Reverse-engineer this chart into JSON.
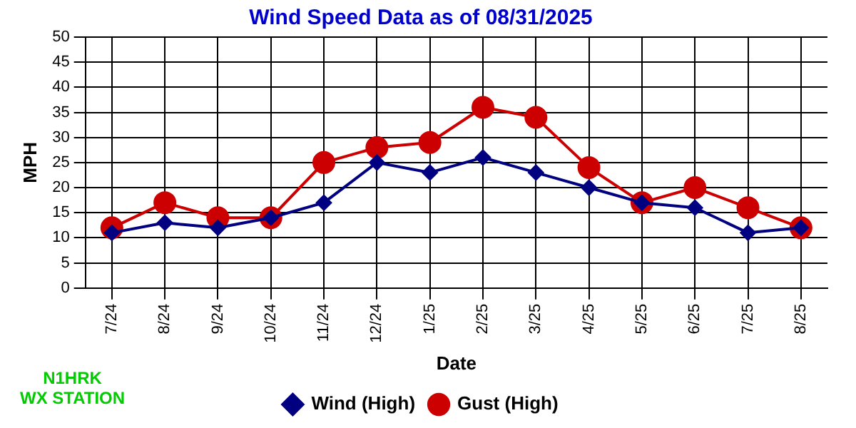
{
  "chart_data": {
    "type": "line",
    "title": "Wind Speed Data as of 08/31/2025",
    "xlabel": "Date",
    "ylabel": "MPH",
    "categories": [
      "7/24",
      "8/24",
      "9/24",
      "10/24",
      "11/24",
      "12/24",
      "1/25",
      "2/25",
      "3/25",
      "4/25",
      "5/25",
      "6/25",
      "7/25",
      "8/25"
    ],
    "series": [
      {
        "name": "Wind (High)",
        "color": "#000080",
        "marker": "diamond",
        "values": [
          11,
          13,
          12,
          14,
          17,
          25,
          23,
          26,
          23,
          20,
          17,
          16,
          11,
          12
        ]
      },
      {
        "name": "Gust (High)",
        "color": "#cc0000",
        "marker": "circle",
        "values": [
          12,
          17,
          14,
          14,
          25,
          28,
          29,
          36,
          34,
          24,
          17,
          20,
          16,
          12
        ]
      }
    ],
    "ylim": [
      0,
      50
    ],
    "yticks": [
      0,
      5,
      10,
      15,
      20,
      25,
      30,
      35,
      40,
      45,
      50
    ],
    "grid": true,
    "legend": "bottom",
    "annotations": [
      "N1HRK\nWX STATION"
    ]
  }
}
